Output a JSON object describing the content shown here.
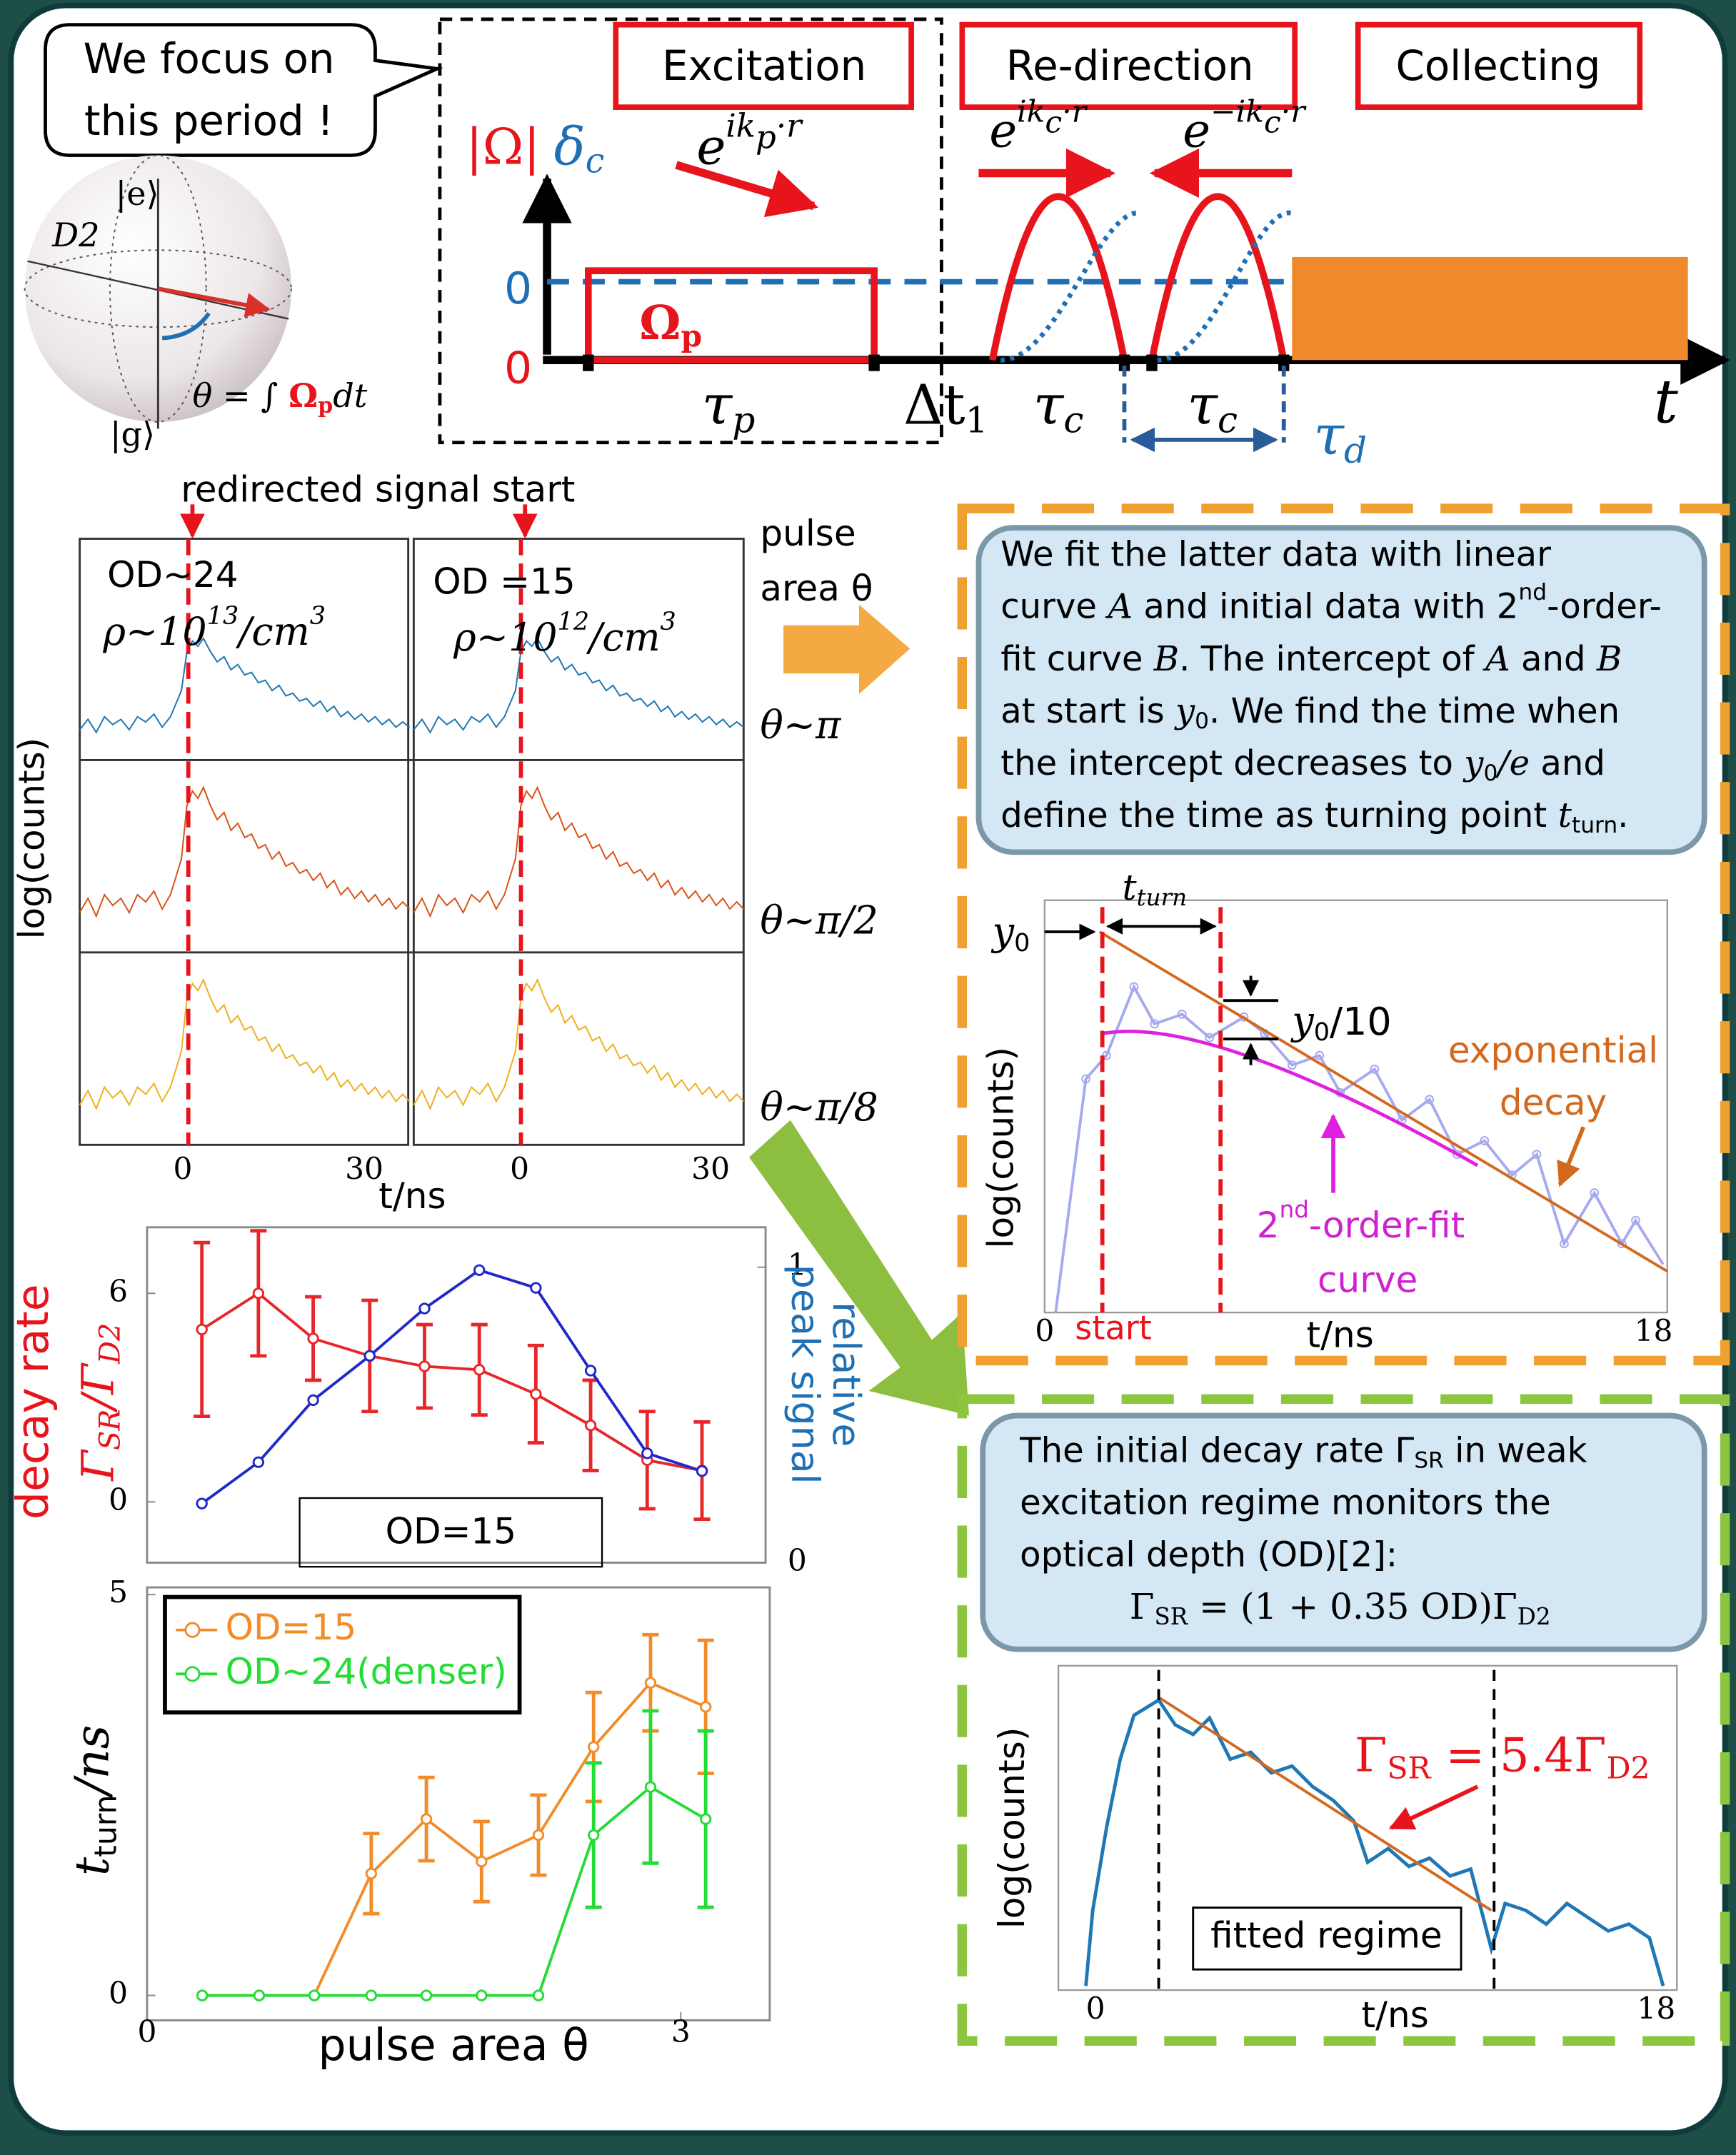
{
  "callout": [
    "We focus on",
    "this period !"
  ],
  "bloch": {
    "excited": "|e⟩",
    "d2": "D2",
    "ground": "|g⟩",
    "area": [
      {
        "text": "θ = ∫ "
      },
      {
        "em": "Ω"
      },
      {
        "emsub": "p"
      },
      {
        "text": "dt"
      }
    ]
  },
  "phases": [
    "Excitation",
    "Re-direction",
    "Collecting"
  ],
  "pulse_diagram": {
    "rabi": "|Ω|",
    "detuning": [
      {
        "text": "δ"
      },
      {
        "sub": "c"
      }
    ],
    "zero_detuning": "0",
    "zero_rabi": "0",
    "pulse": [
      {
        "text": "Ω"
      },
      {
        "sub": "p"
      }
    ],
    "tau_p": [
      {
        "text": "τ"
      },
      {
        "sub": "p"
      }
    ],
    "delta_t1": [
      {
        "text": "Δt"
      },
      {
        "sub": "1"
      }
    ],
    "tau_c": [
      [
        {
          "text": "τ"
        },
        {
          "sub": "c"
        }
      ],
      [
        {
          "text": "τ"
        },
        {
          "sub": "c"
        }
      ]
    ],
    "tau_d": [
      {
        "text": "τ"
      },
      {
        "sub": "d"
      }
    ],
    "time": "t",
    "k_p": [
      {
        "text": "e"
      },
      {
        "sup": "ik"
      },
      {
        "supsub": "p"
      },
      {
        "sup": "·r"
      }
    ],
    "k_c": [
      {
        "text": "e"
      },
      {
        "sup": "ik"
      },
      {
        "supsub": "c"
      },
      {
        "sup": "·r"
      }
    ],
    "k_c_neg": [
      {
        "text": "e"
      },
      {
        "sup": "−ik"
      },
      {
        "supsub": "c"
      },
      {
        "sup": "·r"
      }
    ]
  },
  "traces": {
    "marker": "redirected signal start",
    "y_label": "log(counts)",
    "x_label": "t/ns",
    "panels": [
      {
        "od": "OD~24",
        "density": [
          {
            "text": "ρ~10"
          },
          {
            "sup": "13"
          },
          {
            "text": "/cm"
          },
          {
            "sup": "3"
          }
        ],
        "x_ticks": [
          0,
          30
        ]
      },
      {
        "od": "OD =15",
        "density": [
          {
            "text": "ρ~10"
          },
          {
            "sup": "12"
          },
          {
            "text": "/cm"
          },
          {
            "sup": "3"
          }
        ],
        "x_ticks": [
          0,
          30
        ]
      }
    ],
    "pulse_area": [
      "pulse",
      "area θ"
    ],
    "rows": [
      "θ~π",
      "θ~π/2",
      "θ~π/8"
    ]
  },
  "fit_box": {
    "lines": [
      [
        {
          "text": " We  fit the  latter data with linear"
        }
      ],
      [
        {
          "text": "curve "
        },
        {
          "math": "A"
        },
        {
          "text": " and initial data with 2"
        },
        {
          "sup": "nd"
        },
        {
          "text": "-order-"
        }
      ],
      [
        {
          "text": "fit curve "
        },
        {
          "math": "B"
        },
        {
          "text": ".  The intercept of "
        },
        {
          "math": "A"
        },
        {
          "text": " and "
        },
        {
          "math": "B"
        }
      ],
      [
        {
          "text": "at start is "
        },
        {
          "math": "y"
        },
        {
          "sub": "0"
        },
        {
          "text": ". We find the time when"
        }
      ],
      [
        {
          "text": "the intercept decreases to "
        },
        {
          "math": "y"
        },
        {
          "sub": "0"
        },
        {
          "math": "/e"
        },
        {
          "text": " and"
        }
      ],
      [
        {
          "text": "define the time as turning point "
        },
        {
          "math": "t"
        },
        {
          "sub": "turn"
        },
        {
          "text": "."
        }
      ]
    ]
  },
  "fit_plot": {
    "t_turn": [
      {
        "text": "t"
      },
      {
        "sub": "turn"
      }
    ],
    "y0": [
      {
        "math": "y"
      },
      {
        "sub": "0"
      }
    ],
    "y0_10": [
      {
        "math": "y"
      },
      {
        "sub": "0"
      },
      {
        "text": "/10"
      }
    ],
    "decay_label": [
      "exponential",
      "decay"
    ],
    "fit_label": [
      {
        "text": "2"
      },
      {
        "sup": "nd"
      },
      {
        "text": "-order-fit"
      }
    ],
    "fit_label2": "curve",
    "y_label": "log(counts)",
    "x_label": "t/ns",
    "x_ticks": [
      0,
      18
    ],
    "start": "start"
  },
  "od_box": {
    "lines": [
      [
        {
          "text": "The initial decay rate  Γ"
        },
        {
          "sub": "SR"
        },
        {
          "text": " in weak"
        }
      ],
      "excitation regime monitors the",
      "optical depth (OD)[2]:",
      [
        {
          "text": "Γ"
        },
        {
          "sub": "SR"
        },
        {
          "text": " = (1 + 0.35 OD)Γ"
        },
        {
          "sub": "D2"
        }
      ]
    ]
  },
  "od_plot": {
    "y_label": "log(counts)",
    "rate": [
      {
        "text": "Γ"
      },
      {
        "sub": "SR"
      },
      {
        "text": " = 5.4Γ"
      },
      {
        "sub": "D2"
      }
    ],
    "regime": "fitted regime",
    "x_label": "t/ns",
    "x_ticks": [
      0,
      18
    ]
  },
  "chart_data": [
    {
      "type": "line",
      "y_label": "decay rate",
      "y_label_ratio": [
        {
          "text": "Γ"
        },
        {
          "sub": "SR"
        },
        {
          "text": "/Γ"
        },
        {
          "sub": "D2"
        }
      ],
      "y2_label": [
        "relative",
        "peak signal"
      ],
      "annotation": "OD=15",
      "x": [
        0.31,
        0.63,
        0.94,
        1.26,
        1.57,
        1.88,
        2.2,
        2.51,
        2.83,
        3.14
      ],
      "xlim": [
        0,
        3.5
      ],
      "ylim": [
        -1.75,
        7.9
      ],
      "yticks": [
        0,
        6
      ],
      "y2lim": [
        0,
        1.135
      ],
      "y2ticks": [
        0,
        1
      ],
      "series": [
        {
          "color": "#e8262a",
          "values": [
            4.96,
            6.0,
            4.7,
            4.2,
            3.9,
            3.8,
            3.1,
            2.2,
            1.2,
            0.9
          ],
          "errors": [
            2.5,
            1.8,
            1.2,
            1.6,
            1.2,
            1.3,
            1.4,
            1.3,
            1.4,
            1.4
          ]
        },
        {
          "color": "#2028c8",
          "axis": "y2",
          "values": [
            0.2,
            0.34,
            0.55,
            0.7,
            0.86,
            0.99,
            0.93,
            0.65,
            0.37,
            0.31
          ]
        }
      ]
    },
    {
      "type": "line",
      "y_label": [
        {
          "math": "t"
        },
        {
          "sub": "turn"
        },
        {
          "math": "/ns"
        }
      ],
      "x_label": "pulse area θ",
      "x": [
        0.31,
        0.63,
        0.94,
        1.26,
        1.57,
        1.88,
        2.2,
        2.51,
        2.83,
        3.14
      ],
      "xlim": [
        0,
        3.5
      ],
      "xticks": [
        0,
        3
      ],
      "ylim": [
        -0.31,
        5.09
      ],
      "yticks": [
        0,
        5
      ],
      "legend": "upper left",
      "series": [
        {
          "name": "OD=15",
          "color": "#f28c28",
          "values": [
            0,
            0,
            0,
            1.52,
            2.2,
            1.67,
            2.0,
            3.1,
            3.9,
            3.6
          ],
          "errors": [
            null,
            null,
            null,
            0.5,
            0.52,
            0.5,
            0.5,
            0.68,
            0.6,
            0.83
          ]
        },
        {
          "name": "OD~24(denser)",
          "color": "#22dd33",
          "values": [
            0,
            0,
            0,
            0,
            0,
            0,
            0,
            2.0,
            2.6,
            2.2
          ],
          "errors": [
            null,
            null,
            null,
            null,
            null,
            null,
            null,
            0.9,
            0.95,
            1.1
          ]
        }
      ]
    }
  ]
}
